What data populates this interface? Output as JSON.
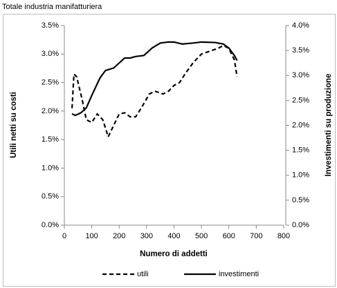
{
  "chart_data": {
    "type": "line",
    "title": "Totale industria manifatturiera",
    "x_label": "Numero di addetti",
    "y_label": "Utili netti su costi",
    "y2_label": "Investimenti su produzione",
    "xlim": [
      0,
      800
    ],
    "xticks": [
      0,
      100,
      200,
      300,
      400,
      500,
      600,
      700,
      800
    ],
    "ylim": [
      0,
      3.5
    ],
    "yticks": [
      {
        "value": 0,
        "label": "0.0%"
      },
      {
        "value": 0.5,
        "label": "0.5%"
      },
      {
        "value": 1,
        "label": "1.0%"
      },
      {
        "value": 1.5,
        "label": "1.5%"
      },
      {
        "value": 2,
        "label": "2.0%"
      },
      {
        "value": 2.5,
        "label": "2.5%"
      },
      {
        "value": 3,
        "label": "3.0%"
      },
      {
        "value": 3.5,
        "label": "3.5%"
      }
    ],
    "y2lim": [
      0,
      4
    ],
    "y2ticks": [
      {
        "value": 0,
        "label": "0.0%"
      },
      {
        "value": 0.5,
        "label": "0.5%"
      },
      {
        "value": 1,
        "label": "1.0%"
      },
      {
        "value": 1.5,
        "label": "1.5%"
      },
      {
        "value": 2,
        "label": "2.0%"
      },
      {
        "value": 2.5,
        "label": "2.5%"
      },
      {
        "value": 3,
        "label": "3.0%"
      },
      {
        "value": 3.5,
        "label": "3.5%"
      },
      {
        "value": 4,
        "label": "4.0%"
      }
    ],
    "grid": false,
    "legend": "bottom",
    "series": [
      {
        "name": "utili",
        "color": "#000000",
        "dashed": true,
        "axis": "y",
        "x": [
          28,
          35,
          45,
          55,
          65,
          80,
          100,
          120,
          140,
          160,
          180,
          200,
          220,
          240,
          260,
          280,
          310,
          330,
          360,
          380,
          400,
          420,
          440,
          470,
          500,
          530,
          560,
          580,
          600,
          620,
          630
        ],
        "values": [
          2.05,
          2.65,
          2.6,
          2.4,
          2.2,
          1.85,
          1.8,
          1.95,
          1.85,
          1.55,
          1.75,
          1.95,
          1.97,
          1.9,
          1.9,
          2.05,
          2.3,
          2.35,
          2.3,
          2.35,
          2.45,
          2.5,
          2.65,
          2.85,
          3.0,
          3.05,
          3.1,
          3.15,
          3.1,
          2.9,
          2.6
        ]
      },
      {
        "name": "investimenti",
        "color": "#000000",
        "dashed": false,
        "axis": "y2",
        "x": [
          28,
          40,
          60,
          80,
          100,
          130,
          150,
          180,
          200,
          220,
          240,
          260,
          290,
          320,
          350,
          380,
          400,
          430,
          470,
          500,
          550,
          580,
          600,
          620,
          630
        ],
        "values": [
          2.23,
          2.2,
          2.25,
          2.35,
          2.6,
          2.95,
          3.1,
          3.15,
          3.25,
          3.35,
          3.35,
          3.38,
          3.4,
          3.55,
          3.65,
          3.67,
          3.67,
          3.63,
          3.65,
          3.67,
          3.66,
          3.63,
          3.55,
          3.4,
          3.3
        ]
      }
    ]
  }
}
